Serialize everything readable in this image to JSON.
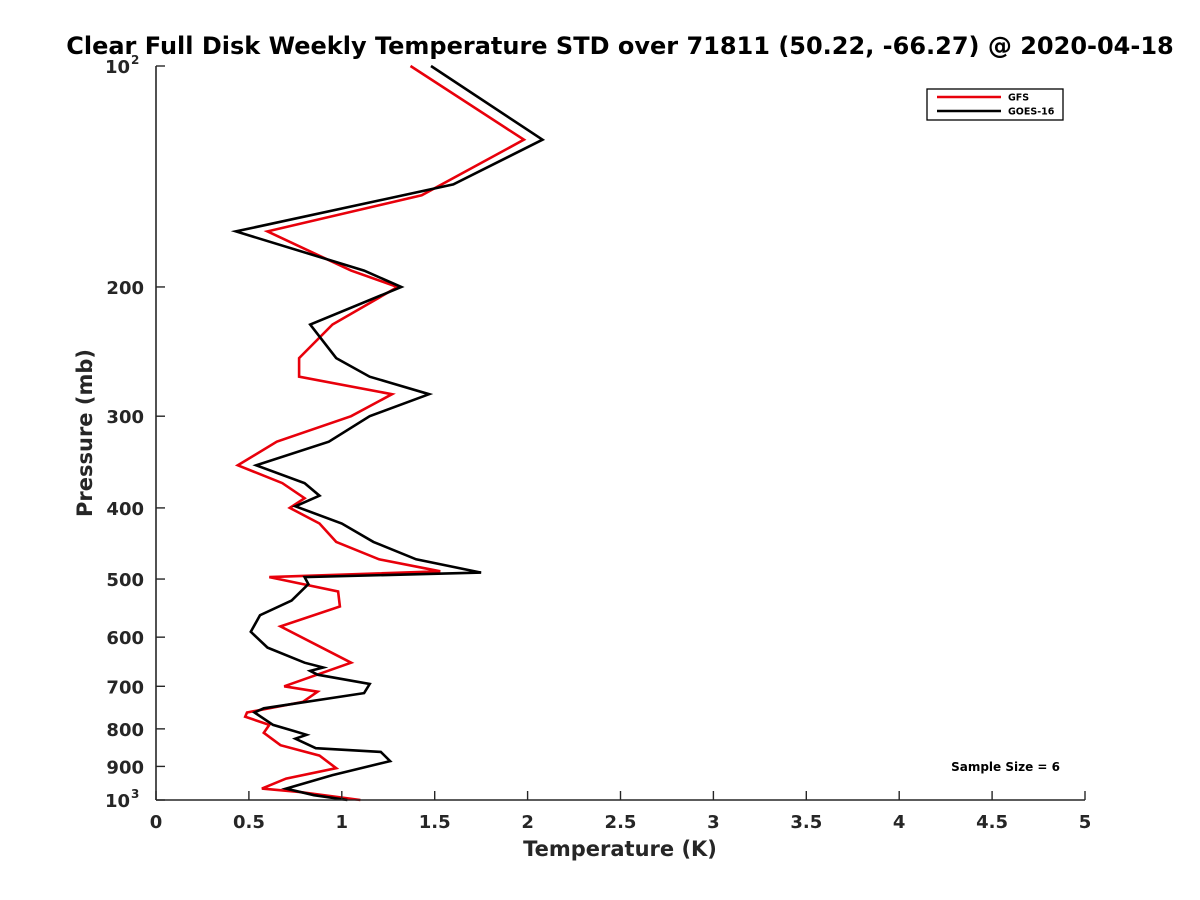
{
  "chart_data": {
    "type": "line",
    "title": "Clear Full Disk Weekly Temperature STD over 71811 (50.22, -66.27) @ 2020-04-18",
    "xlabel": "Temperature (K)",
    "ylabel": "Pressure (mb)",
    "xlim": [
      0,
      5
    ],
    "ylim": [
      1000,
      100
    ],
    "y_scale": "log",
    "y_reversed": true,
    "grid": false,
    "legend_position": "top-right",
    "x_ticks": [
      {
        "value": 0,
        "label": "0"
      },
      {
        "value": 0.5,
        "label": "0.5"
      },
      {
        "value": 1,
        "label": "1"
      },
      {
        "value": 1.5,
        "label": "1.5"
      },
      {
        "value": 2,
        "label": "2"
      },
      {
        "value": 2.5,
        "label": "2.5"
      },
      {
        "value": 3,
        "label": "3"
      },
      {
        "value": 3.5,
        "label": "3.5"
      },
      {
        "value": 4,
        "label": "4"
      },
      {
        "value": 4.5,
        "label": "4.5"
      },
      {
        "value": 5,
        "label": "5"
      }
    ],
    "y_ticks": [
      {
        "value": 100,
        "base": "10",
        "exp": "2"
      },
      {
        "value": 200,
        "label": "200"
      },
      {
        "value": 300,
        "label": "300"
      },
      {
        "value": 400,
        "label": "400"
      },
      {
        "value": 500,
        "label": "500"
      },
      {
        "value": 600,
        "label": "600"
      },
      {
        "value": 700,
        "label": "700"
      },
      {
        "value": 800,
        "label": "800"
      },
      {
        "value": 900,
        "label": "900"
      },
      {
        "value": 1000,
        "base": "10",
        "exp": "3"
      }
    ],
    "series": [
      {
        "name": "GFS",
        "color": "#e8000b",
        "points": [
          [
            1.37,
            100
          ],
          [
            1.98,
            126
          ],
          [
            1.43,
            150
          ],
          [
            0.6,
            168
          ],
          [
            1.05,
            190
          ],
          [
            1.3,
            200
          ],
          [
            0.95,
            225
          ],
          [
            0.77,
            250
          ],
          [
            0.77,
            265
          ],
          [
            1.27,
            280
          ],
          [
            1.05,
            300
          ],
          [
            0.65,
            325
          ],
          [
            0.44,
            350
          ],
          [
            0.68,
            370
          ],
          [
            0.8,
            388
          ],
          [
            0.72,
            400
          ],
          [
            0.88,
            420
          ],
          [
            0.97,
            445
          ],
          [
            1.2,
            470
          ],
          [
            1.53,
            488
          ],
          [
            0.61,
            497
          ],
          [
            0.98,
            520
          ],
          [
            0.99,
            545
          ],
          [
            0.67,
            580
          ],
          [
            1.05,
            650
          ],
          [
            0.69,
            700
          ],
          [
            0.87,
            712
          ],
          [
            0.79,
            735
          ],
          [
            0.49,
            760
          ],
          [
            0.48,
            770
          ],
          [
            0.61,
            790
          ],
          [
            0.58,
            810
          ],
          [
            0.67,
            842
          ],
          [
            0.88,
            870
          ],
          [
            0.97,
            905
          ],
          [
            0.7,
            935
          ],
          [
            0.57,
            965
          ],
          [
            0.77,
            975
          ],
          [
            1.1,
            1000
          ]
        ]
      },
      {
        "name": "GOES-16",
        "color": "#000000",
        "points": [
          [
            1.48,
            100
          ],
          [
            2.08,
            126
          ],
          [
            1.6,
            145
          ],
          [
            0.43,
            168
          ],
          [
            1.12,
            190
          ],
          [
            1.32,
            200
          ],
          [
            0.83,
            225
          ],
          [
            0.97,
            250
          ],
          [
            1.15,
            265
          ],
          [
            1.47,
            280
          ],
          [
            1.15,
            300
          ],
          [
            0.93,
            325
          ],
          [
            0.54,
            350
          ],
          [
            0.8,
            370
          ],
          [
            0.88,
            385
          ],
          [
            0.75,
            398
          ],
          [
            1.0,
            420
          ],
          [
            1.17,
            445
          ],
          [
            1.4,
            470
          ],
          [
            1.75,
            490
          ],
          [
            0.8,
            497
          ],
          [
            0.82,
            508
          ],
          [
            0.73,
            535
          ],
          [
            0.56,
            560
          ],
          [
            0.51,
            590
          ],
          [
            0.6,
            620
          ],
          [
            0.8,
            650
          ],
          [
            0.9,
            660
          ],
          [
            0.83,
            667
          ],
          [
            0.87,
            675
          ],
          [
            1.15,
            695
          ],
          [
            1.12,
            715
          ],
          [
            0.58,
            750
          ],
          [
            0.53,
            760
          ],
          [
            0.63,
            790
          ],
          [
            0.74,
            805
          ],
          [
            0.81,
            815
          ],
          [
            0.75,
            825
          ],
          [
            0.86,
            850
          ],
          [
            1.21,
            860
          ],
          [
            1.26,
            885
          ],
          [
            0.95,
            925
          ],
          [
            0.7,
            965
          ],
          [
            0.85,
            985
          ],
          [
            1.03,
            1000
          ]
        ]
      }
    ],
    "annotation": "Sample Size = 6"
  }
}
